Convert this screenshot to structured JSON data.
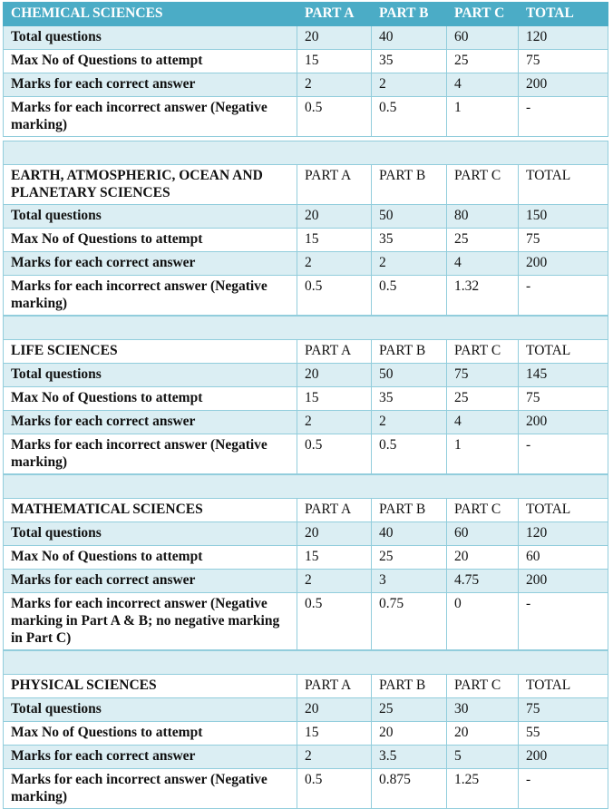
{
  "colors": {
    "header_bg": "#4bacc6",
    "row_shade": "#dbeef3",
    "border": "#92cddc"
  },
  "sections": [
    {
      "title": "CHEMICAL SCIENCES",
      "columns": [
        "PART A",
        "PART B",
        "PART C",
        "TOTAL"
      ],
      "rows": [
        {
          "label": "Total questions",
          "values": [
            "20",
            "40",
            "60",
            "120"
          ]
        },
        {
          "label": "Max No of Questions to attempt",
          "values": [
            "15",
            "35",
            "25",
            "75"
          ]
        },
        {
          "label": "Marks for each correct answer",
          "values": [
            "2",
            "2",
            "4",
            "200"
          ]
        },
        {
          "label": "Marks for each incorrect answer (Negative marking)",
          "values": [
            "0.5",
            "0.5",
            "1",
            "-"
          ]
        }
      ]
    },
    {
      "title": "EARTH, ATMOSPHERIC, OCEAN AND PLANETARY SCIENCES",
      "columns": [
        "PART A",
        "PART B",
        "PART C",
        "TOTAL"
      ],
      "rows": [
        {
          "label": "Total questions",
          "values": [
            "20",
            "50",
            "80",
            "150"
          ]
        },
        {
          "label": "Max No of Questions to attempt",
          "values": [
            "15",
            "35",
            "25",
            "75"
          ]
        },
        {
          "label": "Marks for each correct answer",
          "values": [
            "2",
            "2",
            "4",
            "200"
          ]
        },
        {
          "label": "Marks for each incorrect answer (Negative marking)",
          "values": [
            "0.5",
            "0.5",
            "1.32",
            "-"
          ]
        }
      ]
    },
    {
      "title": "LIFE SCIENCES",
      "columns": [
        "PART A",
        "PART B",
        "PART C",
        "TOTAL"
      ],
      "rows": [
        {
          "label": "Total questions",
          "values": [
            "20",
            "50",
            "75",
            "145"
          ]
        },
        {
          "label": "Max No of Questions to attempt",
          "values": [
            "15",
            "35",
            "25",
            "75"
          ]
        },
        {
          "label": "Marks for each correct answer",
          "values": [
            "2",
            "2",
            "4",
            "200"
          ]
        },
        {
          "label": "Marks for each incorrect answer (Negative marking)",
          "values": [
            "0.5",
            "0.5",
            "1",
            "-"
          ]
        }
      ]
    },
    {
      "title": "MATHEMATICAL SCIENCES",
      "columns": [
        "PART A",
        "PART B",
        "PART C",
        "TOTAL"
      ],
      "rows": [
        {
          "label": "Total questions",
          "values": [
            "20",
            "40",
            "60",
            "120"
          ]
        },
        {
          "label": "Max No of Questions to attempt",
          "values": [
            "15",
            "25",
            "20",
            "60"
          ]
        },
        {
          "label": "Marks for each correct answer",
          "values": [
            "2",
            "3",
            "4.75",
            "200"
          ]
        },
        {
          "label": "Marks for each incorrect answer (Negative marking in Part A & B; no negative marking in Part C)",
          "values": [
            "0.5",
            "0.75",
            "0",
            "-"
          ]
        }
      ]
    },
    {
      "title": "PHYSICAL SCIENCES",
      "columns": [
        "PART A",
        "PART B",
        "PART C",
        "TOTAL"
      ],
      "rows": [
        {
          "label": "Total questions",
          "values": [
            "20",
            "25",
            "30",
            "75"
          ]
        },
        {
          "label": "Max No of Questions to attempt",
          "values": [
            "15",
            "20",
            "20",
            "55"
          ]
        },
        {
          "label": "Marks for each correct answer",
          "values": [
            "2",
            "3.5",
            "5",
            "200"
          ]
        },
        {
          "label": "Marks for each incorrect answer (Negative marking)",
          "values": [
            "0.5",
            "0.875",
            "1.25",
            "-"
          ]
        }
      ]
    }
  ]
}
